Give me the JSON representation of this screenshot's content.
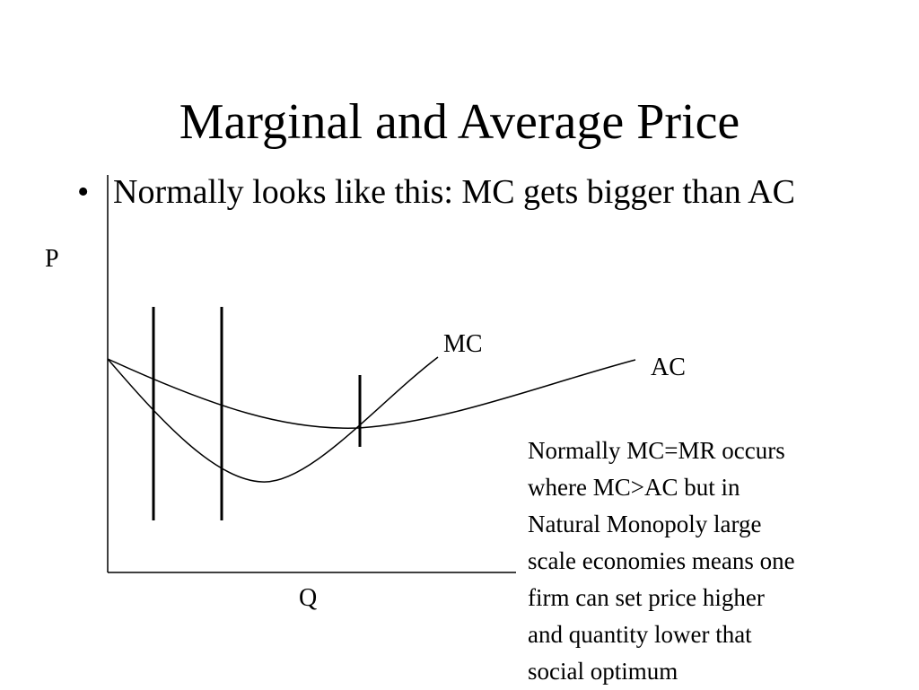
{
  "slide": {
    "title": "Marginal and Average Price",
    "bullet_marker": "•",
    "bullet_text": "Normally looks like this: MC gets bigger than AC"
  },
  "diagram": {
    "y_axis_label": "P",
    "x_axis_label": "Q",
    "mc_label": "MC",
    "ac_label": "AC"
  },
  "note": {
    "text": "Normally MC=MR occurs\nwhere MC>AC but in\nNatural Monopoly large\nscale economies means one\nfirm can set price higher\nand quantity lower that\nsocial optimum"
  }
}
